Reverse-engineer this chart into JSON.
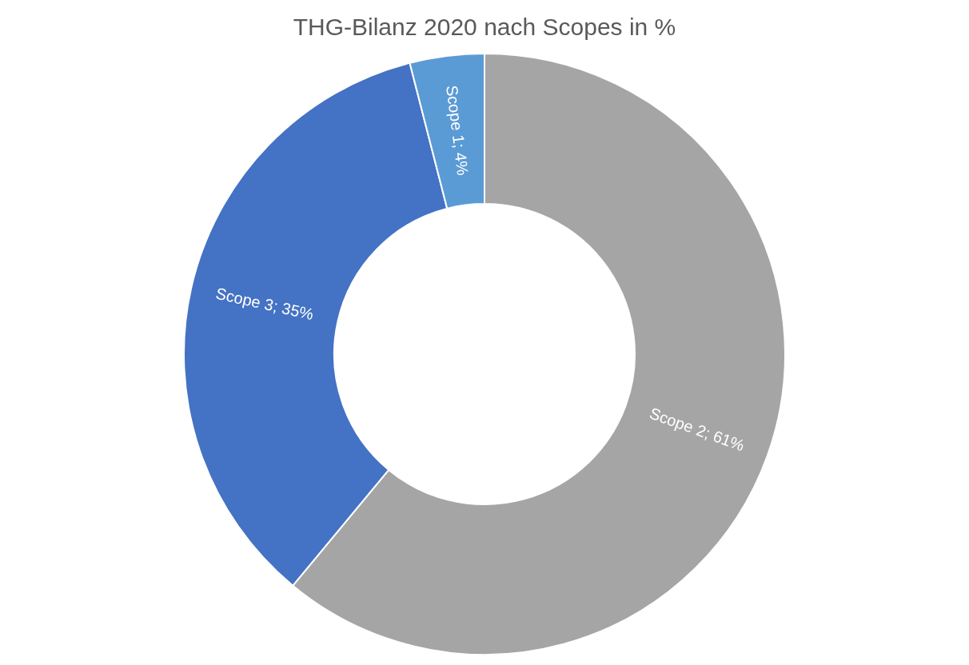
{
  "chart_data": {
    "type": "donut",
    "title": "THG-Bilanz 2020 nach Scopes in %",
    "categories": [
      "Scope 2",
      "Scope 3",
      "Scope 1"
    ],
    "values": [
      61,
      35,
      4
    ],
    "colors": [
      "#a5a5a5",
      "#4472c4",
      "#5b9bd5"
    ],
    "value_labels": [
      "61%",
      "35%",
      "4%"
    ],
    "legend": false
  }
}
